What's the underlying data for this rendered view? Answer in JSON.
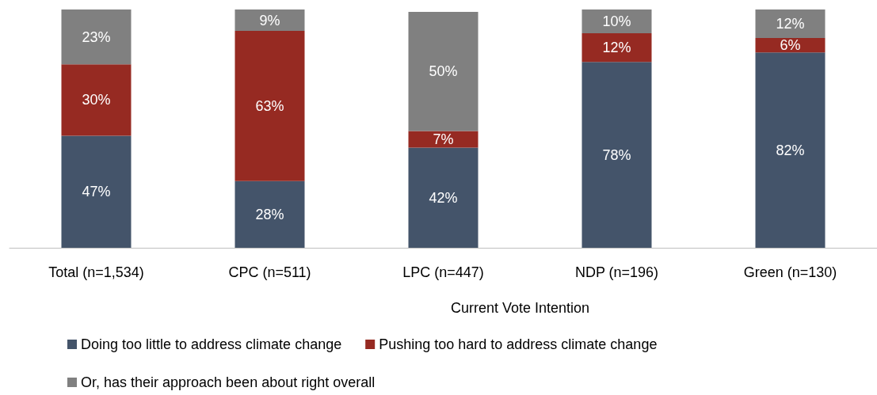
{
  "chart_data": {
    "type": "bar",
    "stacked": true,
    "categories": [
      "Total (n=1,534)",
      "CPC (n=511)",
      "LPC (n=447)",
      "NDP (n=196)",
      "Green (n=130)"
    ],
    "xlabel": "Current Vote Intention",
    "ylim": [
      0,
      100
    ],
    "tick_labels": "x",
    "legend": "bottom",
    "series": [
      {
        "name": "Doing too little to address climate change",
        "color": "#44546a",
        "values": [
          47,
          28,
          42,
          78,
          82
        ],
        "value_labels": [
          "47%",
          "28%",
          "42%",
          "78%",
          "82%"
        ]
      },
      {
        "name": "Pushing too hard to address climate change",
        "color": "#962a22",
        "values": [
          30,
          63,
          7,
          12,
          6
        ],
        "value_labels": [
          "30%",
          "63%",
          "7%",
          "12%",
          "6%"
        ]
      },
      {
        "name": "Or, has their approach been about right overall",
        "color": "#808080",
        "values": [
          23,
          9,
          50,
          10,
          12
        ],
        "value_labels": [
          "23%",
          "9%",
          "50%",
          "10%",
          "12%"
        ]
      }
    ]
  }
}
